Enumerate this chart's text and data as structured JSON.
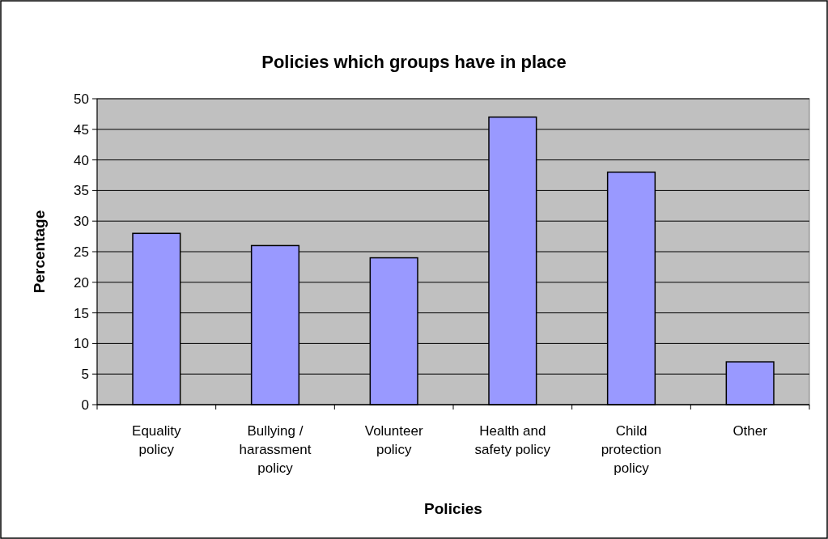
{
  "chart_data": {
    "type": "bar",
    "title": "Policies which groups have in place",
    "xlabel": "Policies",
    "ylabel": "Percentage",
    "categories": [
      "Equality policy",
      "Bullying / harassment policy",
      "Volunteer policy",
      "Health and safety policy",
      "Child protection policy",
      "Other"
    ],
    "values": [
      28,
      26,
      24,
      47,
      38,
      7
    ],
    "color": "#9999ff",
    "ylim": [
      0,
      50
    ],
    "yticks": [
      0,
      5,
      10,
      15,
      20,
      25,
      30,
      35,
      40,
      45,
      50
    ],
    "grid": "y"
  }
}
